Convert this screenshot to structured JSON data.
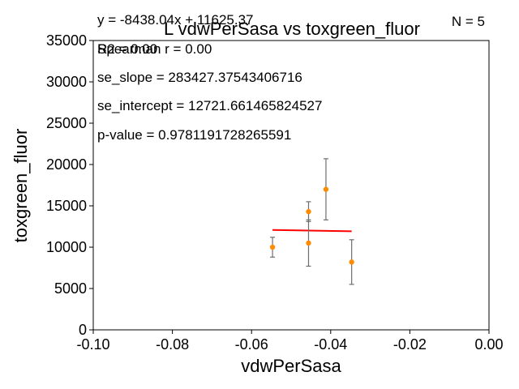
{
  "chart_data": {
    "type": "scatter",
    "title": "L vdwPerSasa vs toxgreen_fluor",
    "xlabel": "vdwPerSasa",
    "ylabel": "toxgreen_fluor",
    "xlim": [
      -0.1,
      0.0
    ],
    "ylim": [
      0,
      35000
    ],
    "x_ticks": [
      "-0.10",
      "-0.08",
      "-0.06",
      "-0.04",
      "-0.02",
      "0.00"
    ],
    "x_tick_values": [
      -0.1,
      -0.08,
      -0.06,
      -0.04,
      -0.02,
      0.0
    ],
    "y_ticks": [
      "0",
      "5000",
      "10000",
      "15000",
      "20000",
      "25000",
      "30000",
      "35000"
    ],
    "y_tick_values": [
      0,
      5000,
      10000,
      15000,
      20000,
      25000,
      30000,
      35000
    ],
    "grid": false,
    "points": [
      {
        "x": -0.0547,
        "y": 10000,
        "err": 1200
      },
      {
        "x": -0.0456,
        "y": 14300,
        "err": 1200
      },
      {
        "x": -0.0456,
        "y": 10500,
        "err": 2800
      },
      {
        "x": -0.0412,
        "y": 17000,
        "err": 3700
      },
      {
        "x": -0.0347,
        "y": 8200,
        "err": 2700
      }
    ],
    "fit_line": {
      "slope": -8438.04,
      "intercept": 11625.37,
      "x_range": [
        -0.0547,
        -0.0347
      ]
    },
    "colors": {
      "points": "#ff8c00",
      "errorbars": "#6e6e6e",
      "fit": "#ff0000"
    },
    "annotations": {
      "equation": "y = -8438.04x + 11625.37",
      "r2": "R2 = 0.00",
      "spearman": "Spearman r = 0.00",
      "n": "N = 5",
      "se_slope": "se_slope = 283427.37543406716",
      "se_intercept": "se_intercept = 12721.661465824527",
      "p_value": "p-value = 0.9781191728265591"
    }
  }
}
